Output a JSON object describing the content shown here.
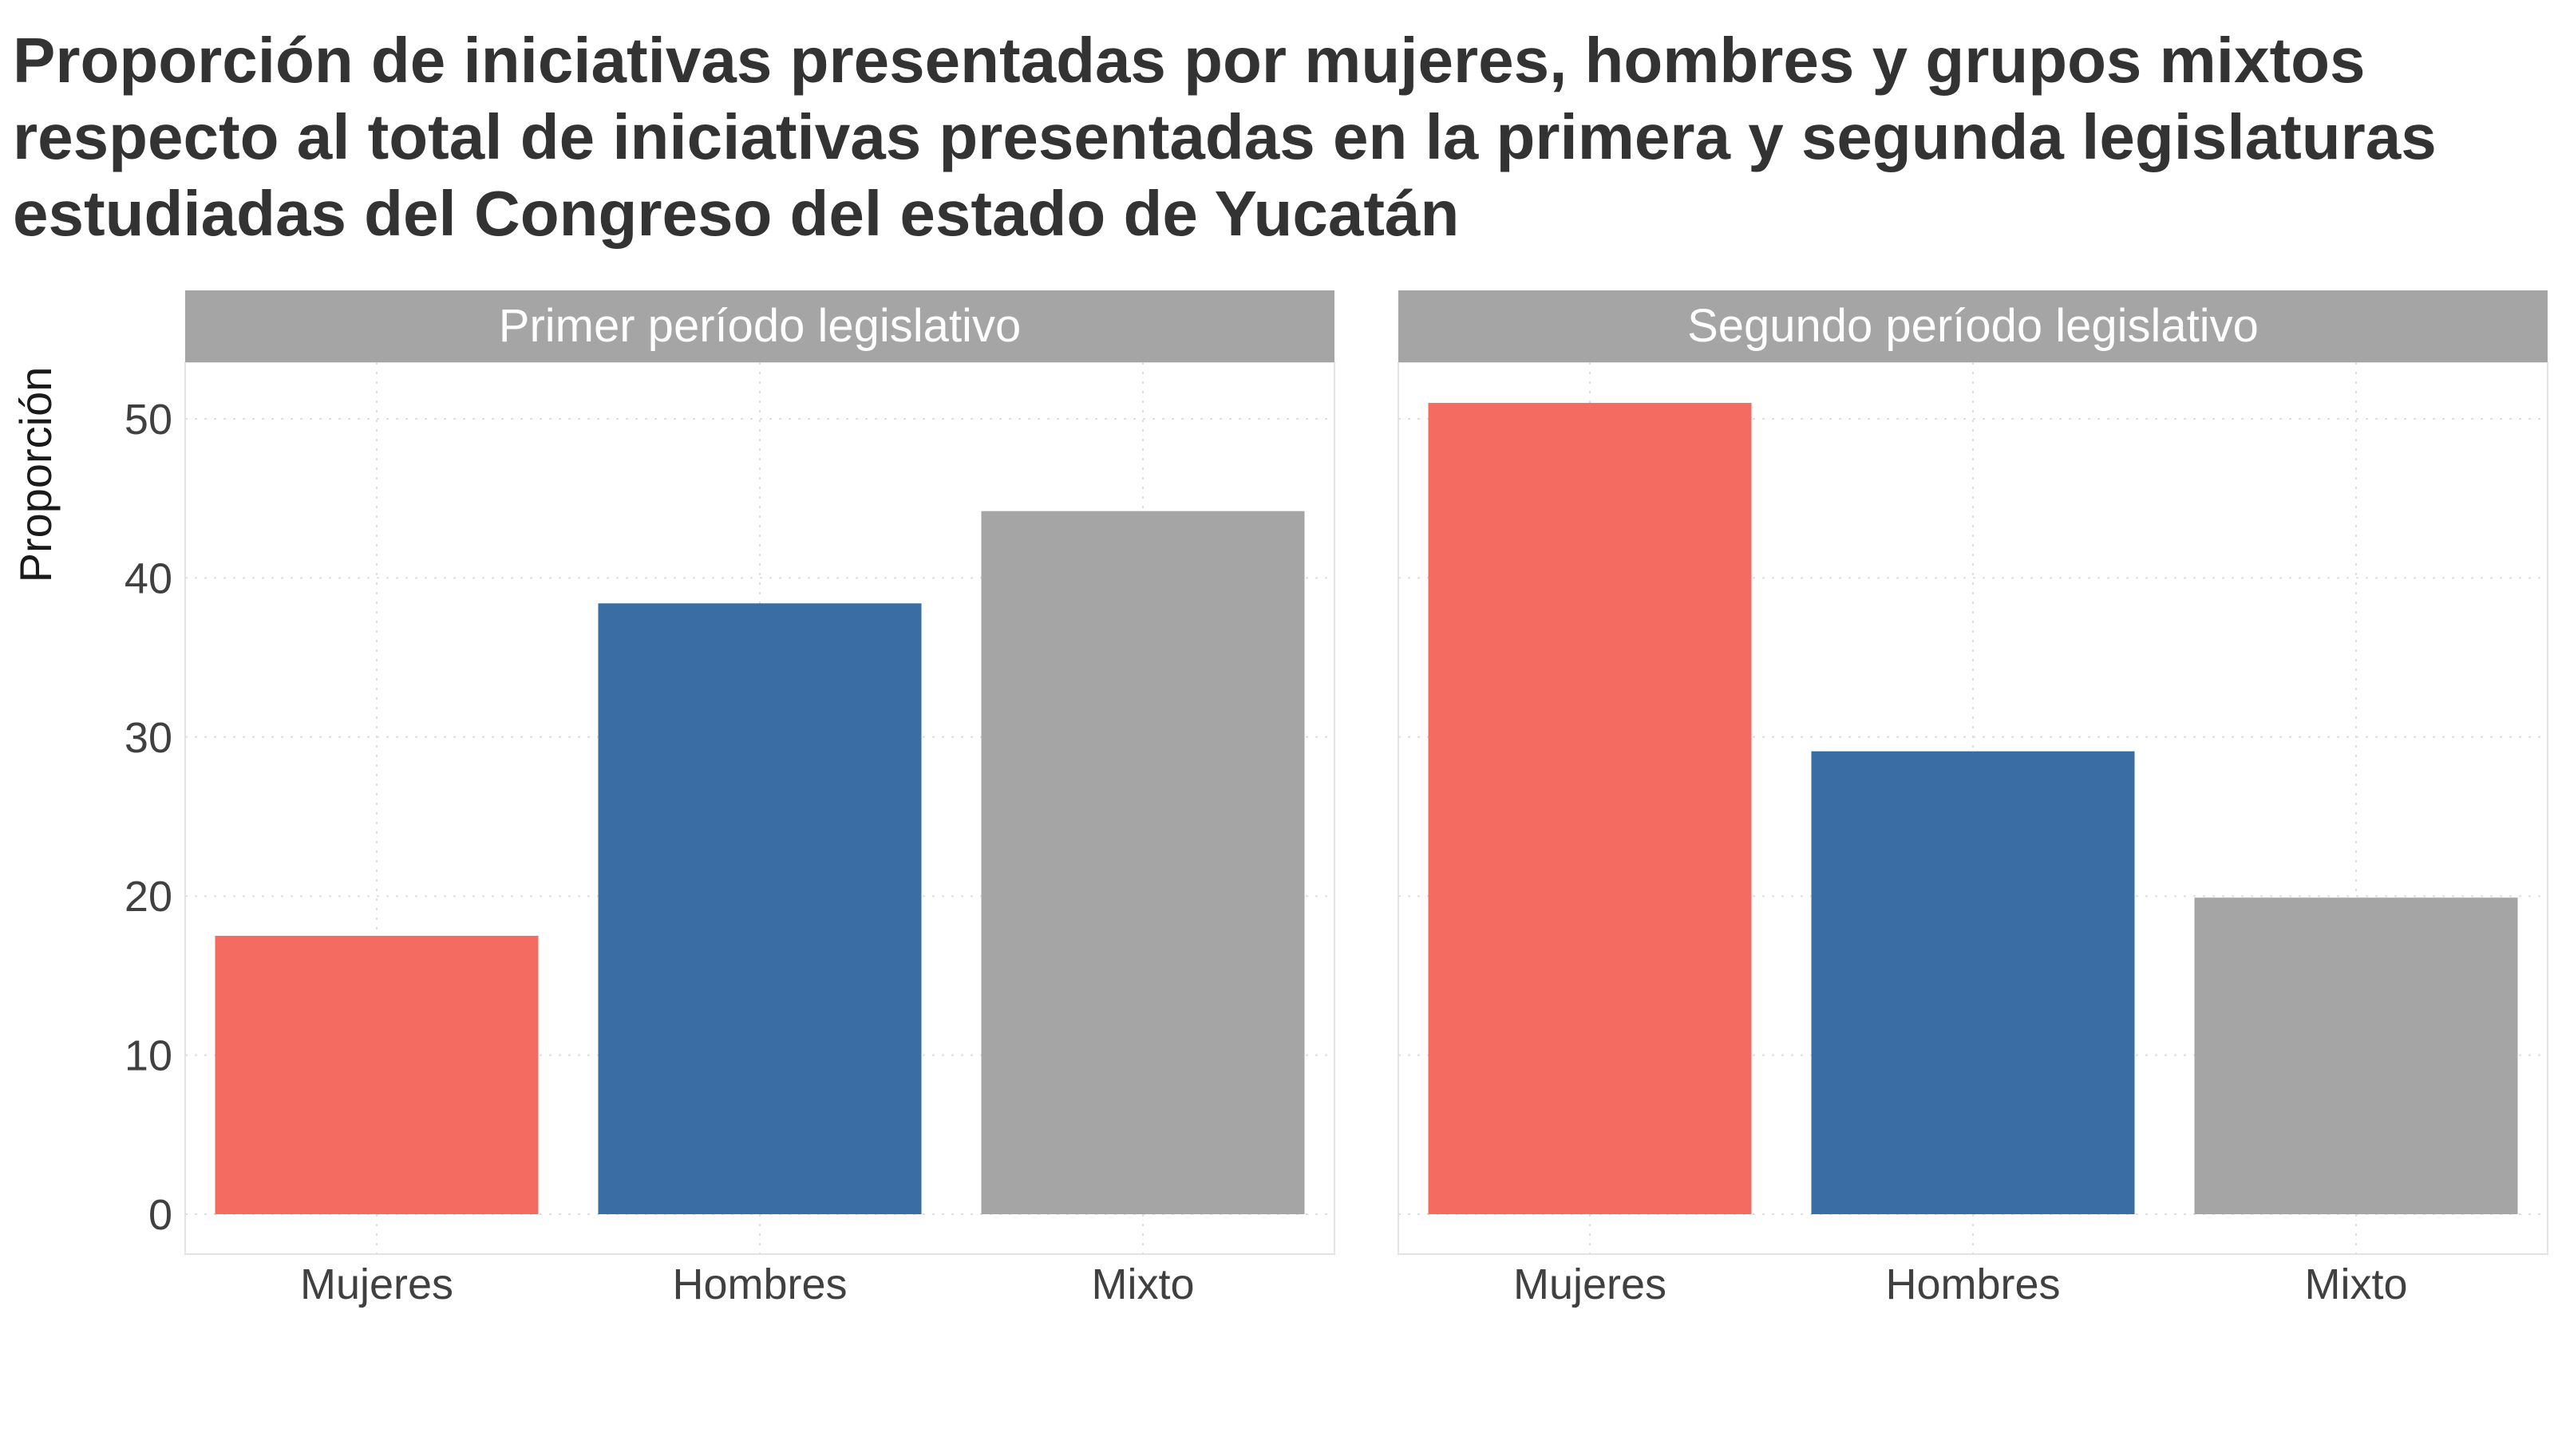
{
  "chart_data": {
    "type": "bar",
    "title": "Proporción de iniciativas presentadas por mujeres, hombres y grupos mixtos respecto al total de iniciativas presentadas en la primera y segunda legislaturas estudiadas del Congreso del estado de Yucatán",
    "ylabel": "Proporción",
    "xlabel": "",
    "ylim": [
      0,
      53.5
    ],
    "yticks": [
      "0",
      "10",
      "20",
      "30",
      "40",
      "50"
    ],
    "grid": true,
    "legend": "none",
    "categories": [
      "Mujeres",
      "Hombres",
      "Mixto"
    ],
    "colors": [
      "#F46B61",
      "#3A6DA3",
      "#A5A5A5"
    ],
    "panels": [
      {
        "name": "Primer período legislativo",
        "values": [
          17.5,
          38.4,
          44.2
        ]
      },
      {
        "name": "Segundo período legislativo",
        "values": [
          51.0,
          29.1,
          19.9
        ]
      }
    ]
  }
}
